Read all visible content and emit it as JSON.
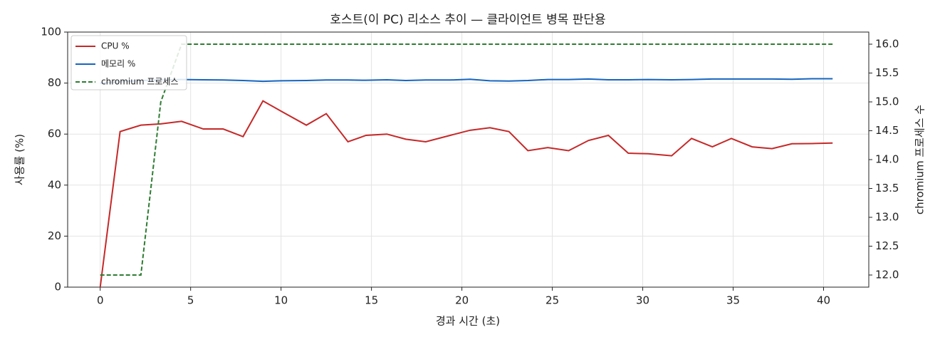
{
  "chart_data": {
    "type": "line",
    "title": "호스트(이 PC) 리소스 추이 — 클라이언트 병목 판단용",
    "xlabel": "경과 시간 (초)",
    "ylabel": "사용률 (%)",
    "y2label": "chromium 프로세스 수",
    "x": [
      0,
      1.1,
      2.25,
      3.35,
      4.5,
      5.7,
      6.8,
      7.9,
      9.0,
      10.0,
      11.4,
      12.5,
      13.7,
      14.7,
      15.85,
      16.9,
      18.0,
      19.35,
      20.45,
      21.55,
      22.6,
      23.65,
      24.75,
      25.9,
      27.0,
      28.1,
      29.2,
      30.3,
      31.6,
      32.7,
      33.85,
      34.9,
      36.05,
      37.15,
      38.25,
      39.35,
      40.5
    ],
    "series": [
      {
        "name": "CPU %",
        "color": "#c62828",
        "values": [
          0,
          61,
          63.5,
          64,
          65,
          62,
          62,
          59,
          73,
          69,
          63.5,
          68,
          57,
          59.5,
          60,
          58,
          57,
          59.5,
          61.5,
          62.5,
          61,
          53.5,
          54.7,
          53.5,
          57.5,
          59.5,
          52.5,
          52.3,
          51.5,
          58.3,
          55,
          58.3,
          55,
          54.3,
          56.2,
          56.3,
          56.5
        ]
      },
      {
        "name": "메모리 %",
        "color": "#1565c0",
        "values": [
          80,
          80.5,
          81,
          81.2,
          81.4,
          81.3,
          81.2,
          81,
          80.7,
          80.9,
          81,
          81.2,
          81.2,
          81.1,
          81.3,
          81,
          81.2,
          81.2,
          81.5,
          80.9,
          80.8,
          81,
          81.4,
          81.4,
          81.6,
          81.3,
          81.3,
          81.4,
          81.3,
          81.4,
          81.6,
          81.6,
          81.6,
          81.6,
          81.5,
          81.7,
          81.7
        ]
      },
      {
        "name": "chromium 프로세스",
        "color": "#2e7d32",
        "dash": true,
        "axis": "y2",
        "values": [
          12,
          12,
          12,
          15,
          16,
          16,
          16,
          16,
          16,
          16,
          16,
          16,
          16,
          16,
          16,
          16,
          16,
          16,
          16,
          16,
          16,
          16,
          16,
          16,
          16,
          16,
          16,
          16,
          16,
          16,
          16,
          16,
          16,
          16,
          16,
          16,
          16
        ]
      }
    ],
    "xlim": [
      -1.8,
      42.5
    ],
    "xticks": [
      0,
      5,
      10,
      15,
      20,
      25,
      30,
      35,
      40
    ],
    "ylim": [
      0,
      100
    ],
    "yticks": [
      0,
      20,
      40,
      60,
      80,
      100
    ],
    "y2lim": [
      11.79,
      16.21
    ],
    "y2ticks": [
      {
        "value": 12,
        "label": "12.0"
      },
      12.5,
      {
        "value": 13,
        "label": "13.0"
      },
      13.5,
      {
        "value": 14,
        "label": "14.0"
      },
      14.5,
      {
        "value": 15,
        "label": "15.0"
      },
      15.5,
      {
        "value": 16,
        "label": "16.0"
      }
    ],
    "grid": true,
    "legend": "upper-left"
  }
}
